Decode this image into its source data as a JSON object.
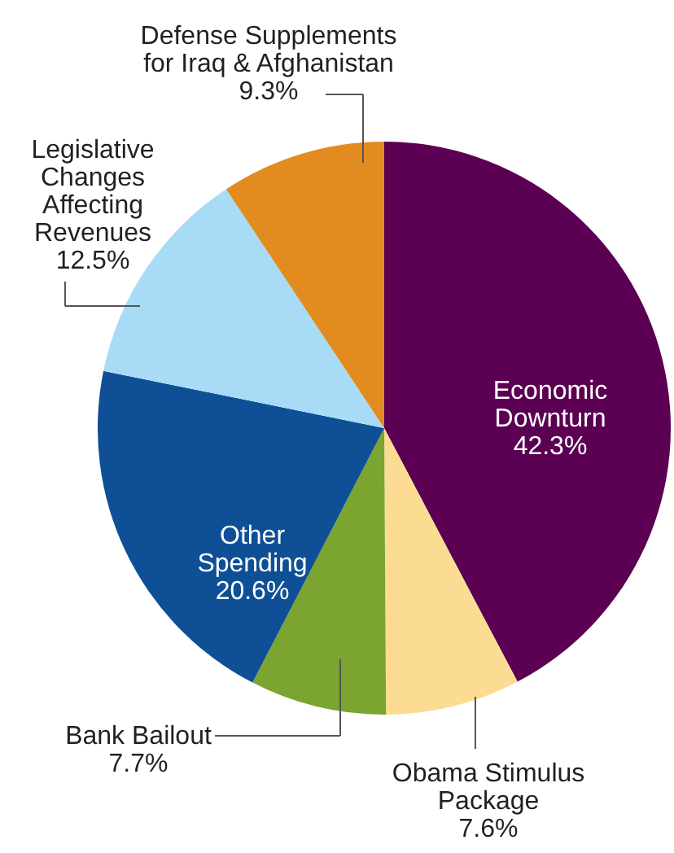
{
  "chart_data": {
    "type": "pie",
    "categories": [
      "Economic Downturn",
      "Obama Stimulus Package",
      "Bank Bailout",
      "Other Spending",
      "Legislative Changes Affecting Revenues",
      "Defense Supplements for Iraq & Afghanistan"
    ],
    "values": [
      42.3,
      7.6,
      7.7,
      20.6,
      12.5,
      9.3
    ],
    "colors": [
      "#5b0052",
      "#fcdc92",
      "#7ba431",
      "#0e4f96",
      "#a8dcf6",
      "#e28b1f"
    ],
    "value_labels": [
      "42.3%",
      "7.6%",
      "7.7%",
      "20.6%",
      "12.5%",
      "9.3%"
    ]
  }
}
